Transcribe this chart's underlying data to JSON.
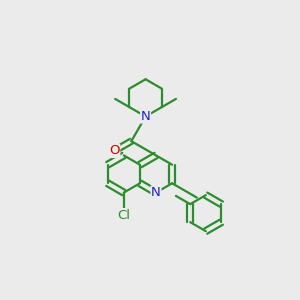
{
  "background_color": "#ebebeb",
  "bond_color": "#2d8c2d",
  "n_color": "#2222cc",
  "o_color": "#cc0000",
  "cl_color": "#2d8c2d",
  "line_width": 1.6,
  "font_size_atom": 9.5,
  "xlim": [
    0,
    10
  ],
  "ylim": [
    0,
    10
  ]
}
